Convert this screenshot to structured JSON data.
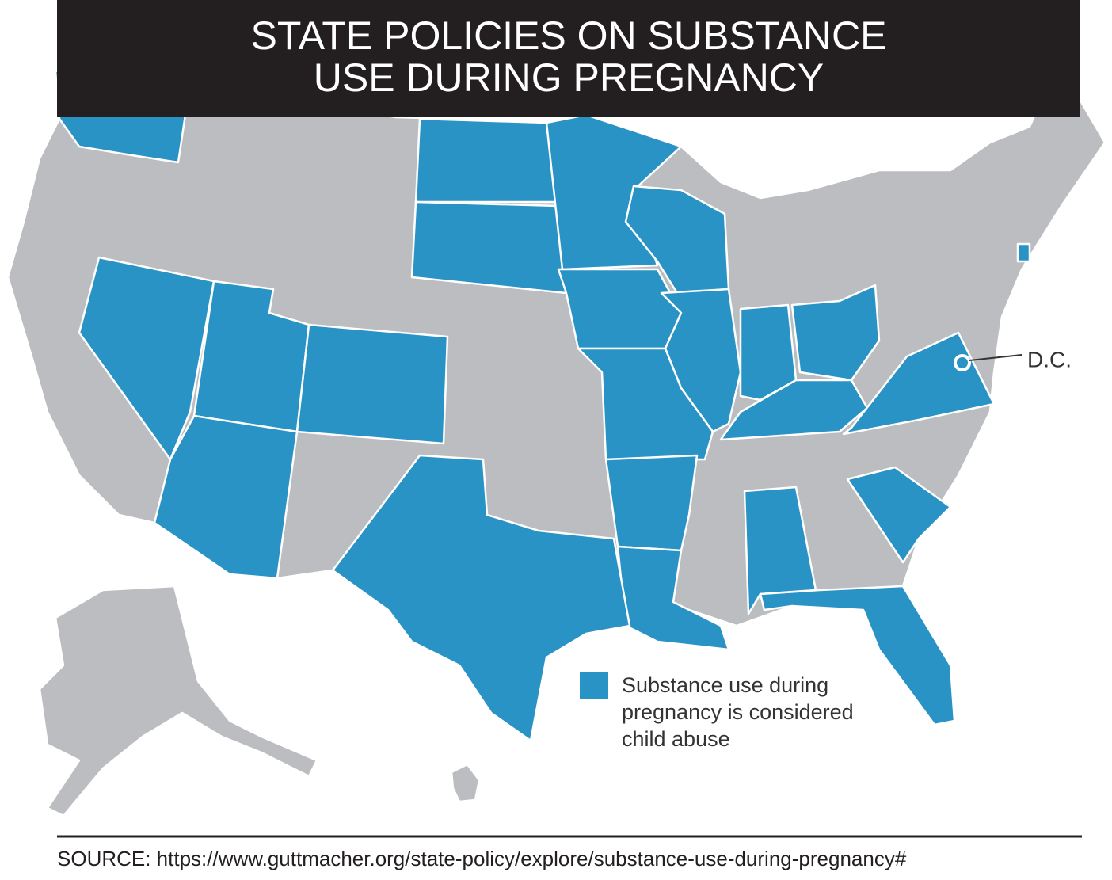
{
  "header": {
    "title": [
      "STATE POLICIES ON SUBSTANCE",
      "USE DURING PREGNANCY"
    ]
  },
  "map": {
    "dc_label": "D.C.",
    "base_color": "#bcbdc0"
  },
  "legend": {
    "color": "#2a93c6",
    "lines": [
      "Substance use during",
      "pregnancy is considered",
      "child abuse"
    ]
  },
  "footer": {
    "source": "SOURCE: https://www.guttmacher.org/state-policy/explore/substance-use-during-pregnancy#"
  }
}
